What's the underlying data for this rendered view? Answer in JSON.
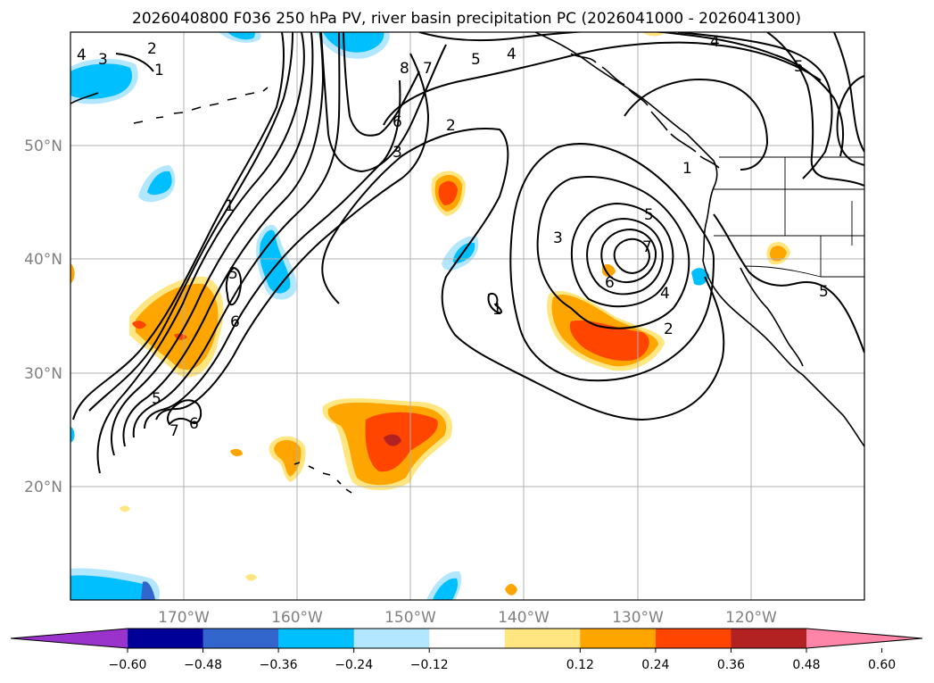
{
  "title": "2026040800 F036 250 hPa PV, river basin precipitation PC (2026041000 - 2026041300)",
  "map": {
    "projection": "cylindrical",
    "lon_range": [
      -180,
      -110
    ],
    "lat_range": [
      10,
      60
    ],
    "lat_ticks": [
      {
        "lat": 50,
        "label": "50°N"
      },
      {
        "lat": 40,
        "label": "40°N"
      },
      {
        "lat": 30,
        "label": "30°N"
      },
      {
        "lat": 20,
        "label": "20°N"
      }
    ],
    "lon_ticks": [
      {
        "lon": -170,
        "label": "170°W"
      },
      {
        "lon": -160,
        "label": "160°W"
      },
      {
        "lon": -150,
        "label": "150°W"
      },
      {
        "lon": -140,
        "label": "140°W"
      },
      {
        "lon": -130,
        "label": "130°W"
      },
      {
        "lon": -120,
        "label": "120°W"
      }
    ],
    "grid": true,
    "pv_contour_labels": [
      "4",
      "3",
      "2",
      "1",
      "8",
      "7",
      "6",
      "5",
      "2",
      "3",
      "4",
      "5",
      "1",
      "5",
      "6",
      "3",
      "5",
      "7",
      "4",
      "6",
      "2",
      "1",
      "5",
      "7",
      "6",
      "1",
      "4",
      "5"
    ]
  },
  "colorbar": {
    "ticks": [
      "−0.60",
      "−0.48",
      "−0.36",
      "−0.24",
      "−0.12",
      "0.12",
      "0.24",
      "0.36",
      "0.48",
      "0.60"
    ],
    "colors": [
      "#9933cc",
      "#000099",
      "#3366cc",
      "#00bfff",
      "#b3e6ff",
      "#ffffff",
      "#ffe680",
      "#ffa500",
      "#ff4500",
      "#b22222",
      "#ff85a8"
    ],
    "extend": "both"
  }
}
